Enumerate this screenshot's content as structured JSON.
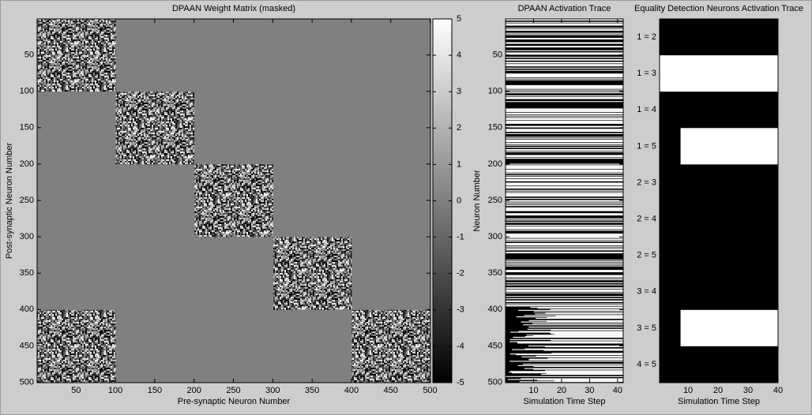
{
  "chart_data": [
    {
      "type": "heatmap",
      "title": "DPAAN Weight Matrix (masked)",
      "x_label": "Pre-synaptic Neuron Number",
      "y_label": "Post-synaptic Neuron Number",
      "xlim": [
        0.5,
        500.5
      ],
      "ylim": [
        0.5,
        500.5
      ],
      "y_reversed": true,
      "xticks": [
        50,
        100,
        150,
        200,
        250,
        300,
        350,
        400,
        450,
        500
      ],
      "yticks": [
        50,
        100,
        150,
        200,
        250,
        300,
        350,
        400,
        450,
        500
      ],
      "background_value": 0,
      "blocks": [
        {
          "rows": [
            1,
            100
          ],
          "cols": [
            1,
            100
          ]
        },
        {
          "rows": [
            101,
            200
          ],
          "cols": [
            101,
            200
          ]
        },
        {
          "rows": [
            201,
            300
          ],
          "cols": [
            201,
            300
          ]
        },
        {
          "rows": [
            301,
            400
          ],
          "cols": [
            301,
            400
          ]
        },
        {
          "rows": [
            401,
            500
          ],
          "cols": [
            401,
            500
          ]
        },
        {
          "rows": [
            401,
            500
          ],
          "cols": [
            1,
            100
          ]
        }
      ],
      "colorbar": {
        "lim": [
          -5,
          5
        ],
        "ticks": [
          -5,
          -4,
          -3,
          -2,
          -1,
          0,
          1,
          2,
          3,
          4,
          5
        ]
      }
    },
    {
      "type": "raster",
      "title": "DPAAN Activation Trace",
      "x_label": "Simulation Time Step",
      "y_label": "Neuron Number",
      "xlim": [
        0,
        42
      ],
      "ylim": [
        0.5,
        500.5
      ],
      "y_reversed": true,
      "xticks": [
        10,
        20,
        30,
        40
      ],
      "yticks": [
        50,
        100,
        150,
        200,
        250,
        300,
        350,
        400,
        450,
        500
      ]
    },
    {
      "type": "onset",
      "title": "Equality Detection Neurons Activation Trace",
      "x_label": "Simulation Time Step",
      "xlim": [
        0.5,
        40
      ],
      "xticks": [
        10,
        20,
        30,
        40
      ],
      "categories": [
        "1 = 2",
        "1 = 3",
        "1 = 4",
        "1 = 5",
        "2 = 3",
        "2 = 4",
        "2 = 5",
        "3 = 4",
        "3 = 5",
        "4 = 5"
      ],
      "active_from": [
        null,
        0.5,
        null,
        7.5,
        null,
        null,
        null,
        null,
        7.5,
        null
      ]
    }
  ]
}
